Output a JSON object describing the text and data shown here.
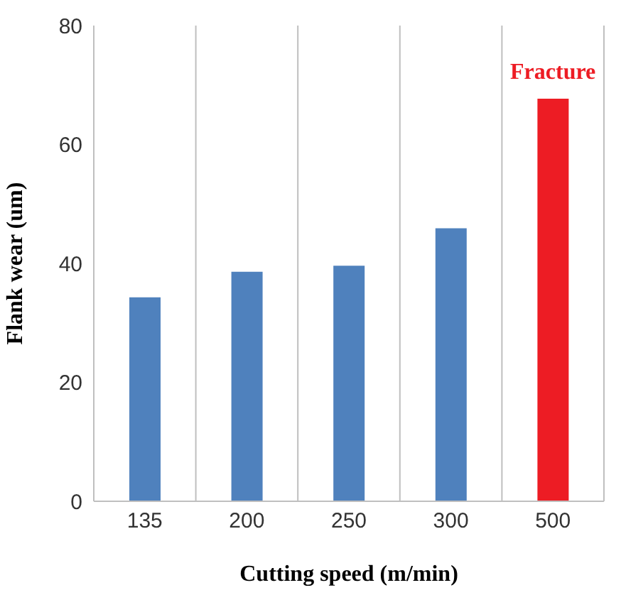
{
  "chart_data": {
    "type": "bar",
    "xlabel": "Cutting speed (m/min)",
    "ylabel": "Flank wear (um)",
    "categories": [
      "135",
      "200",
      "250",
      "300",
      "500"
    ],
    "values": [
      34.3,
      38.6,
      39.6,
      45.9,
      67.7
    ],
    "colors": [
      "#4f81bd",
      "#4f81bd",
      "#4f81bd",
      "#4f81bd",
      "#ed1c24"
    ],
    "ylim": [
      0,
      80
    ],
    "yticks": [
      0,
      20,
      40,
      60,
      80
    ],
    "grid": "x",
    "annotations": [
      {
        "text": "Fracture",
        "x": "500",
        "y": 67.7
      }
    ]
  }
}
